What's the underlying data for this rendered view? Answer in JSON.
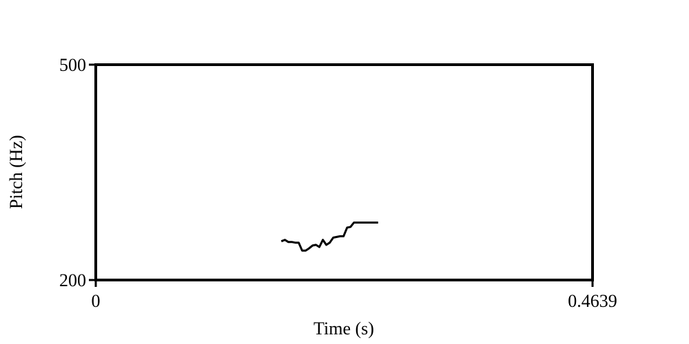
{
  "chart_data": {
    "type": "line",
    "title": "",
    "xlabel": "Time (s)",
    "ylabel": "Pitch (Hz)",
    "xlim": [
      0,
      0.4639
    ],
    "ylim": [
      200,
      500
    ],
    "x_tick_labels": [
      "0",
      "0.4639"
    ],
    "y_tick_labels": [
      "500",
      "200"
    ],
    "grid": false,
    "legend": "none",
    "line_color": "#000000",
    "series": [
      {
        "x": [
          0.1733,
          0.1766,
          0.1798,
          0.183,
          0.1863,
          0.1895,
          0.1927,
          0.196,
          0.1991,
          0.2024,
          0.2056,
          0.2088,
          0.2121,
          0.2153,
          0.2185,
          0.2218,
          0.225,
          0.2282,
          0.2314,
          0.2347,
          0.2379,
          0.2411,
          0.2443,
          0.2476,
          0.2508,
          0.254,
          0.2572,
          0.2605,
          0.2637
        ],
        "y": [
          254,
          256,
          253,
          253,
          252,
          252,
          241,
          241,
          244,
          248,
          249,
          246,
          256,
          249,
          252,
          259,
          260,
          261,
          261,
          273,
          274,
          280,
          280,
          280,
          280,
          280,
          280,
          280,
          280
        ]
      }
    ]
  }
}
